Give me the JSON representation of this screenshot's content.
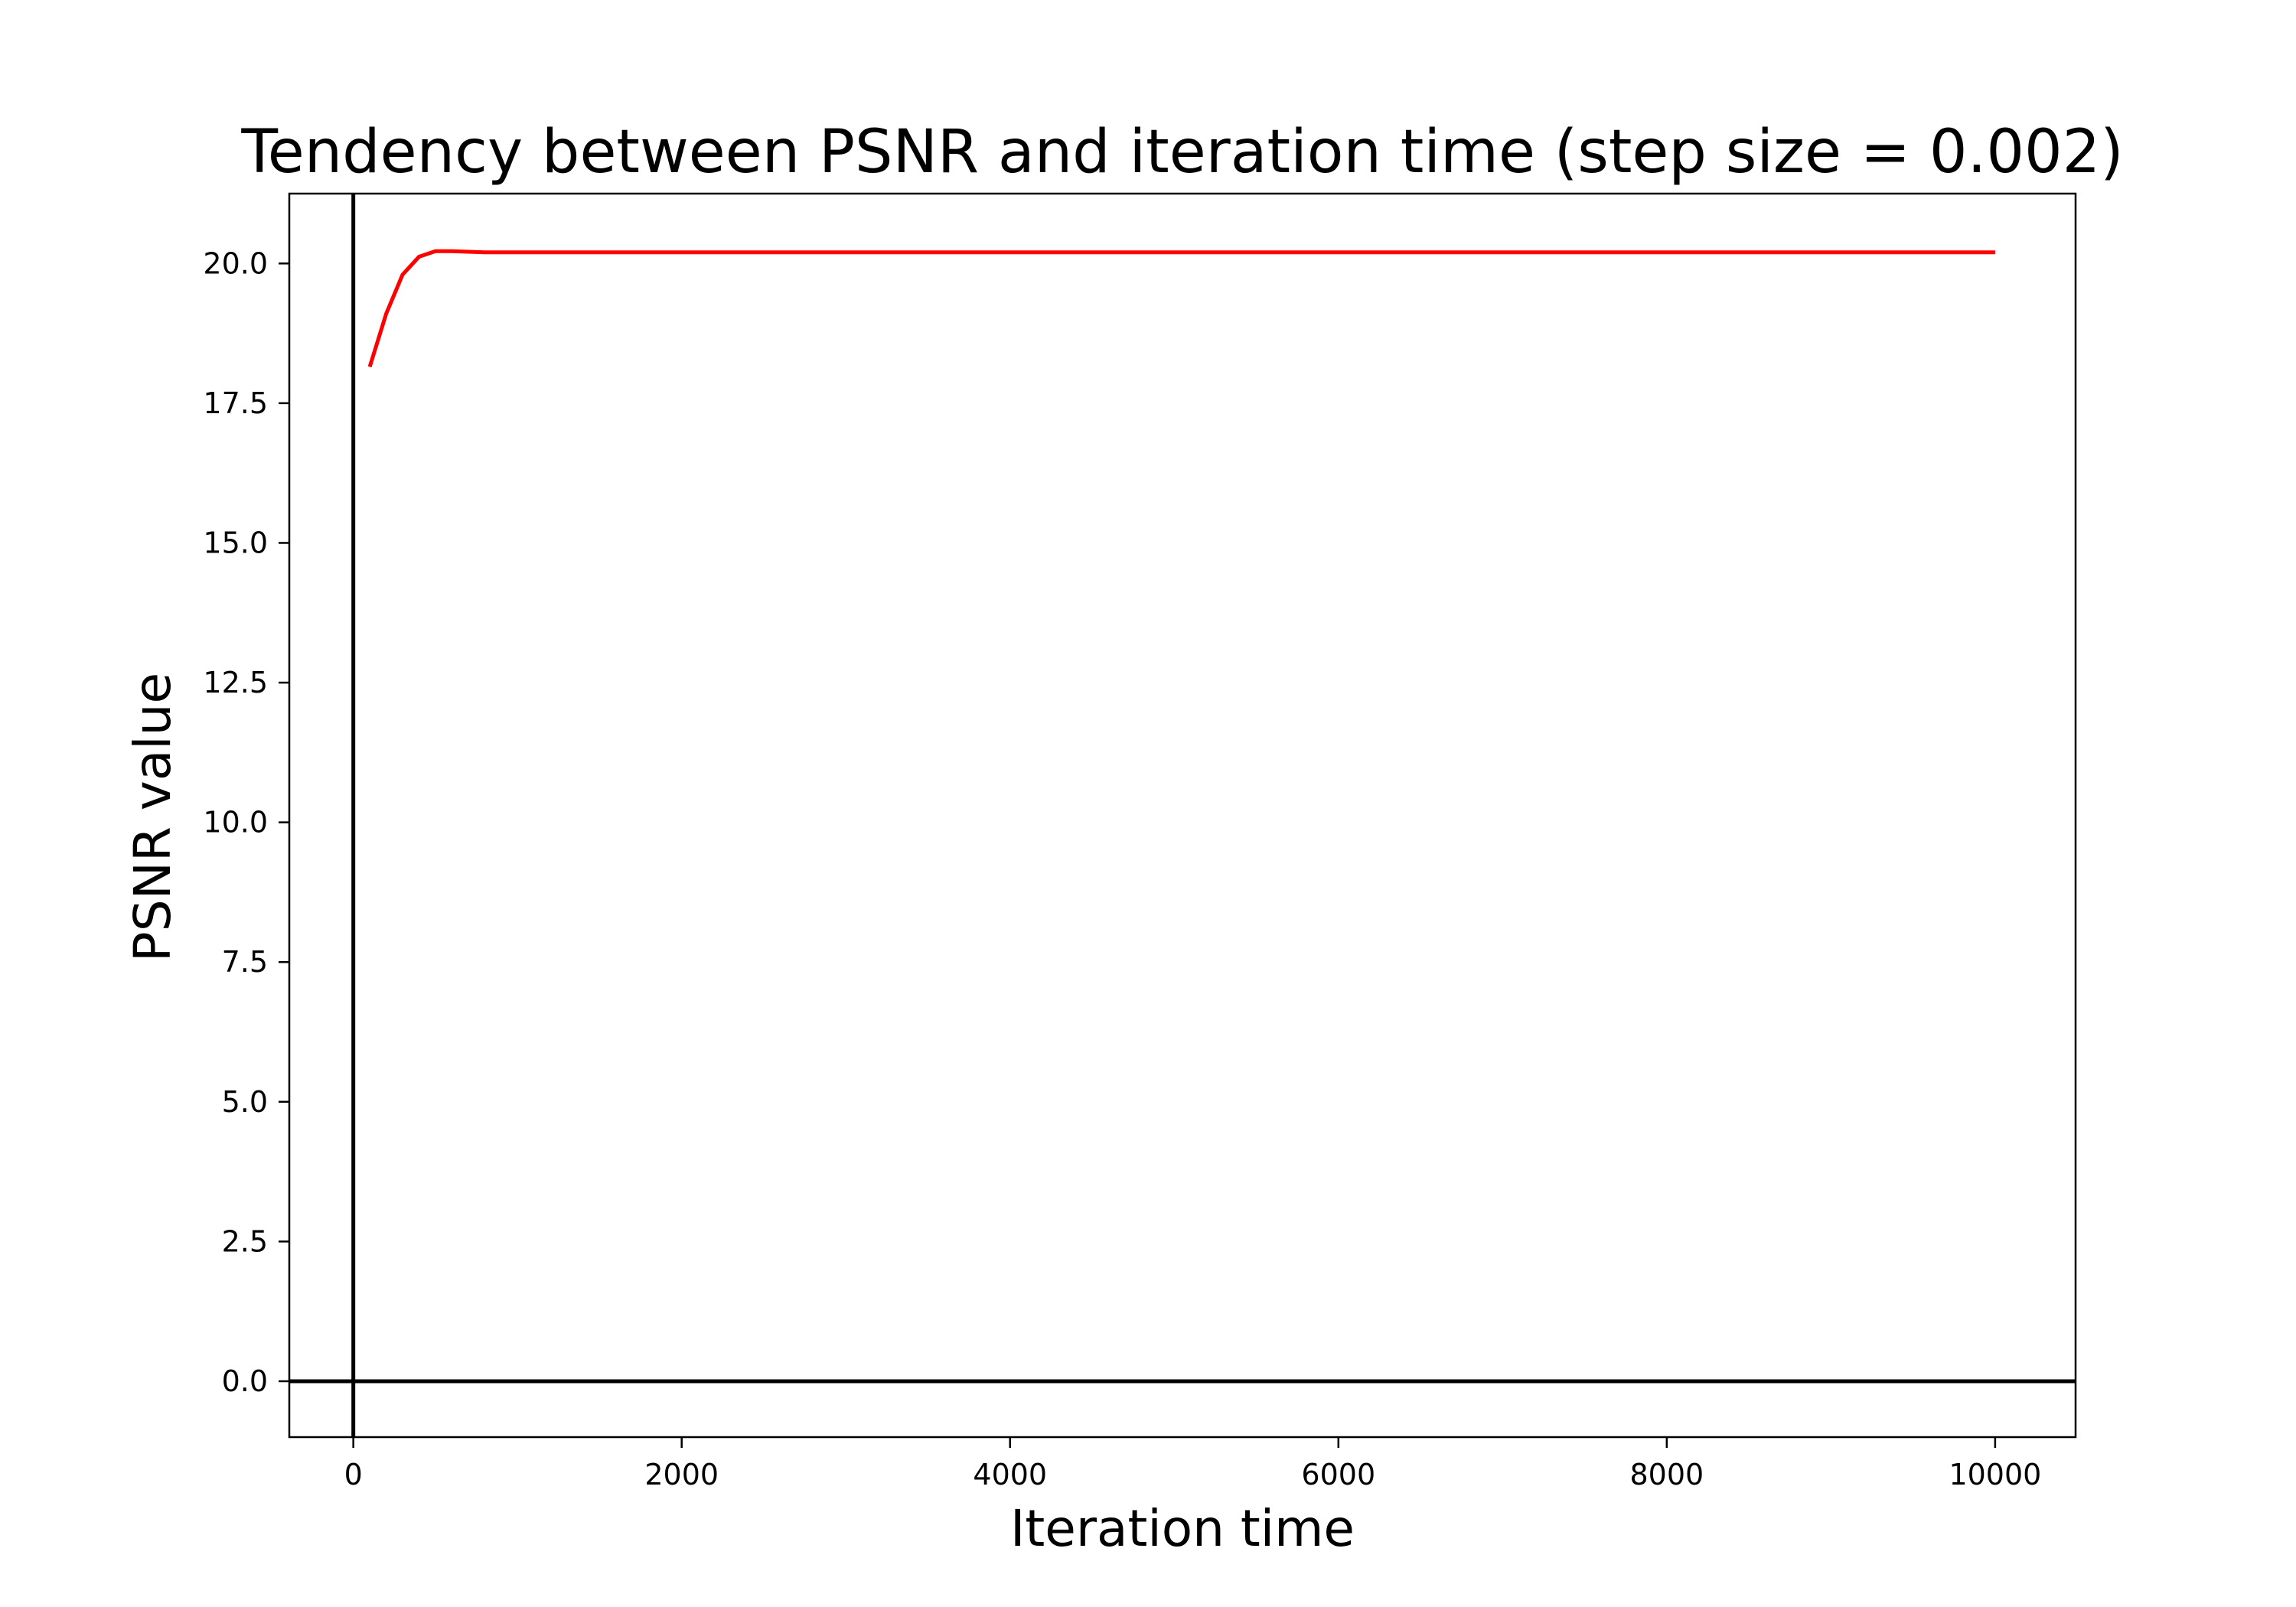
{
  "chart_data": {
    "type": "line",
    "title": "Tendency between PSNR and iteration time (step size = 0.002)",
    "xlabel": "Iteration time",
    "ylabel": "PSNR value",
    "xlim": [
      -390,
      10490
    ],
    "ylim": [
      -1.0,
      21.25
    ],
    "xticks": [
      0,
      2000,
      4000,
      6000,
      8000,
      10000
    ],
    "xtick_labels": [
      "0",
      "2000",
      "4000",
      "6000",
      "8000",
      "10000"
    ],
    "yticks": [
      0,
      2.5,
      5,
      7.5,
      10,
      12.5,
      15,
      17.5,
      20
    ],
    "ytick_labels": [
      "0.0",
      "2.5",
      "5.0",
      "7.5",
      "10.0",
      "12.5",
      "15.0",
      "17.5",
      "20.0"
    ],
    "grid": false,
    "reference_lines": [
      {
        "axis": "x",
        "value": 0,
        "color": "#000000"
      },
      {
        "axis": "y",
        "value": 0,
        "color": "#000000"
      }
    ],
    "series": [
      {
        "color": "#ff0000",
        "x": [
          100,
          200,
          300,
          400,
          500,
          600,
          700,
          800,
          900,
          1000,
          1500,
          2000,
          3000,
          4000,
          5000,
          6000,
          7000,
          8000,
          9000,
          10000
        ],
        "y": [
          18.15,
          19.1,
          19.8,
          20.12,
          20.22,
          20.22,
          20.21,
          20.2,
          20.2,
          20.2,
          20.2,
          20.2,
          20.2,
          20.2,
          20.2,
          20.2,
          20.2,
          20.2,
          20.2,
          20.2
        ]
      }
    ]
  }
}
